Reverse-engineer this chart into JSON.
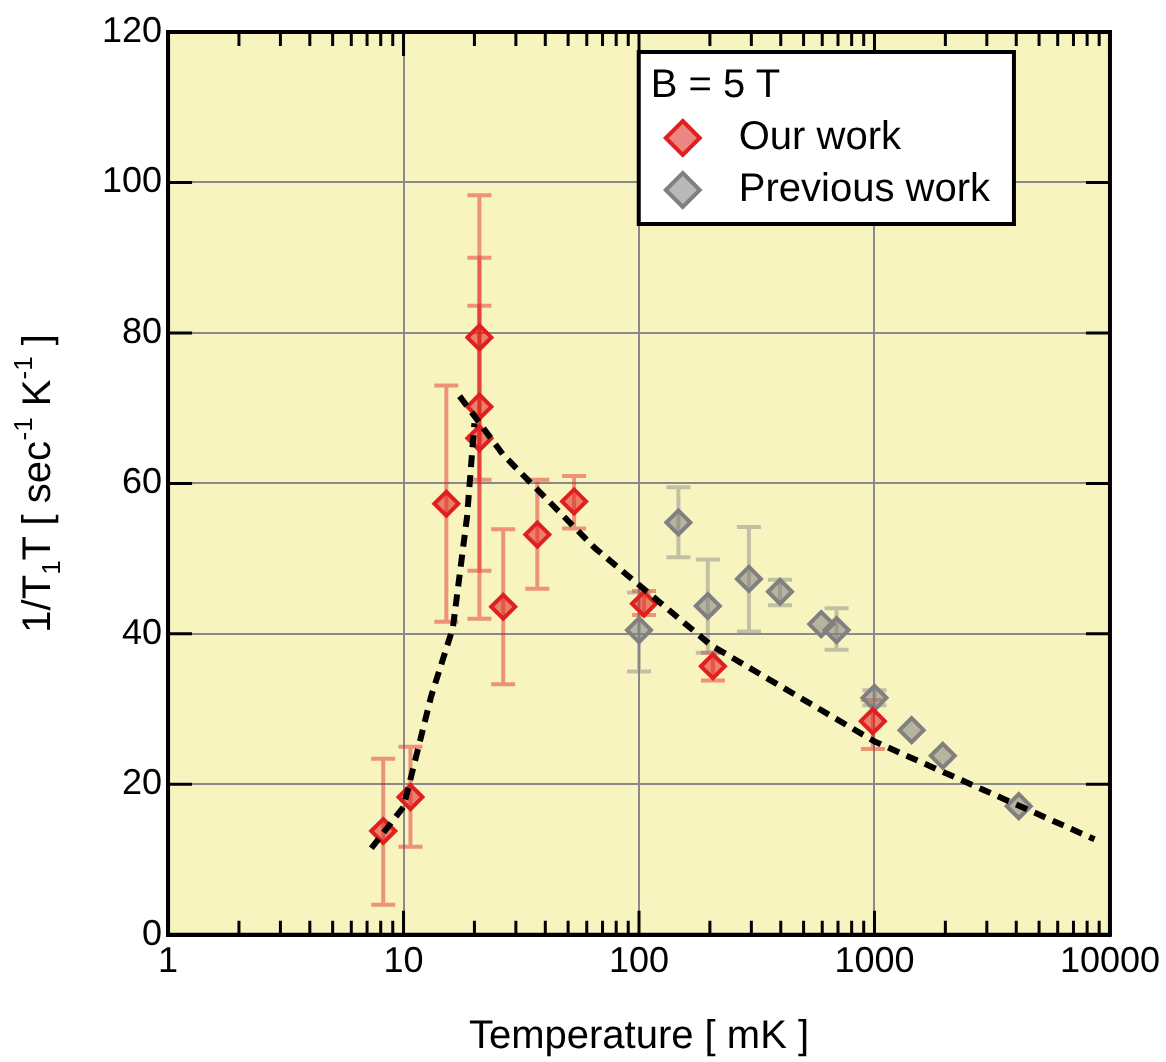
{
  "chart_data": {
    "type": "scatter",
    "xlabel": "Temperature [ mK ]",
    "ylabel": "1/T$_{1}$T [ sec$^{-1}$ K$^{-1}$ ]",
    "legend_title": "B = 5 T",
    "legend": "top right",
    "grid": true,
    "log": "x",
    "marker": "diamond",
    "xlim": [
      1,
      10000
    ],
    "ylim": [
      0,
      120
    ],
    "xticks": [
      1,
      {
        "value": 2,
        "label": null
      },
      {
        "value": 3,
        "label": null
      },
      {
        "value": 4,
        "label": null
      },
      {
        "value": 5,
        "label": null
      },
      {
        "value": 6,
        "label": null
      },
      {
        "value": 7,
        "label": null
      },
      {
        "value": 8,
        "label": null
      },
      {
        "value": 9,
        "label": null
      },
      10,
      {
        "value": 20,
        "label": null
      },
      {
        "value": 30,
        "label": null
      },
      {
        "value": 40,
        "label": null
      },
      {
        "value": 50,
        "label": null
      },
      {
        "value": 60,
        "label": null
      },
      {
        "value": 70,
        "label": null
      },
      {
        "value": 80,
        "label": null
      },
      {
        "value": 90,
        "label": null
      },
      100,
      {
        "value": 200,
        "label": null
      },
      {
        "value": 300,
        "label": null
      },
      {
        "value": 400,
        "label": null
      },
      {
        "value": 500,
        "label": null
      },
      {
        "value": 600,
        "label": null
      },
      {
        "value": 700,
        "label": null
      },
      {
        "value": 800,
        "label": null
      },
      {
        "value": 900,
        "label": null
      },
      1000,
      {
        "value": 2000,
        "label": null
      },
      {
        "value": 3000,
        "label": null
      },
      {
        "value": 4000,
        "label": null
      },
      {
        "value": 5000,
        "label": null
      },
      {
        "value": 6000,
        "label": null
      },
      {
        "value": 7000,
        "label": null
      },
      {
        "value": 8000,
        "label": null
      },
      {
        "value": 9000,
        "label": null
      },
      10000
    ],
    "yticks": [
      0,
      20,
      40,
      60,
      80,
      100,
      120
    ],
    "series": [
      {
        "name": "Our work",
        "color": "#e02020",
        "x": [
          8.2,
          10.7,
          15.2,
          21,
          21,
          21,
          26.5,
          37,
          53,
          105,
          206,
          984
        ],
        "values": [
          13.8,
          18.3,
          57.3,
          79.4,
          70.2,
          66,
          43.6,
          53.2,
          57.6,
          44,
          35.7,
          28.4
        ],
        "errors": [
          [
            4,
            23.4
          ],
          [
            11.7,
            25
          ],
          [
            41.6,
            73
          ],
          [
            60.5,
            98.3
          ],
          [
            48.4,
            90
          ],
          [
            42,
            83.6
          ],
          [
            33.3,
            53.9
          ],
          [
            46,
            60.5
          ],
          [
            54,
            61
          ],
          [
            42.5,
            45.7
          ],
          [
            33.8,
            37.5
          ],
          [
            24.7,
            31.2
          ]
        ]
      },
      {
        "name": "Previous work",
        "color": "#808080",
        "x": [
          100,
          147,
          196,
          293,
          397,
          594,
          690,
          1000,
          1438,
          1950,
          4100
        ],
        "values": [
          40.5,
          54.8,
          43.7,
          47.3,
          45.6,
          41.3,
          40.5,
          31.5,
          27.2,
          23.8,
          17.1
        ],
        "errors": [
          [
            35,
            45.5
          ],
          [
            50.2,
            59.5
          ],
          [
            37.5,
            49.9
          ],
          [
            40.3,
            54.2
          ],
          [
            43.8,
            47.2
          ],
          null,
          [
            37.9,
            43.4
          ],
          [
            30.5,
            32.5
          ],
          null,
          null,
          null
        ]
      },
      {
        "type": "line",
        "color": "#000000",
        "line_style": "dashed",
        "marker": "none",
        "x": [
          7.3,
          10,
          13.1,
          16.2,
          18.6,
          20
        ],
        "values": [
          11.5,
          17,
          31.7,
          40.8,
          55.5,
          68
        ]
      },
      {
        "type": "line",
        "color": "#000000",
        "line_style": "dashed",
        "marker": "none",
        "x": [
          17.3,
          26.5,
          65,
          202,
          1000,
          8600
        ],
        "values": [
          71.6,
          63.8,
          51.4,
          38.5,
          25.7,
          12.7
        ]
      }
    ]
  }
}
